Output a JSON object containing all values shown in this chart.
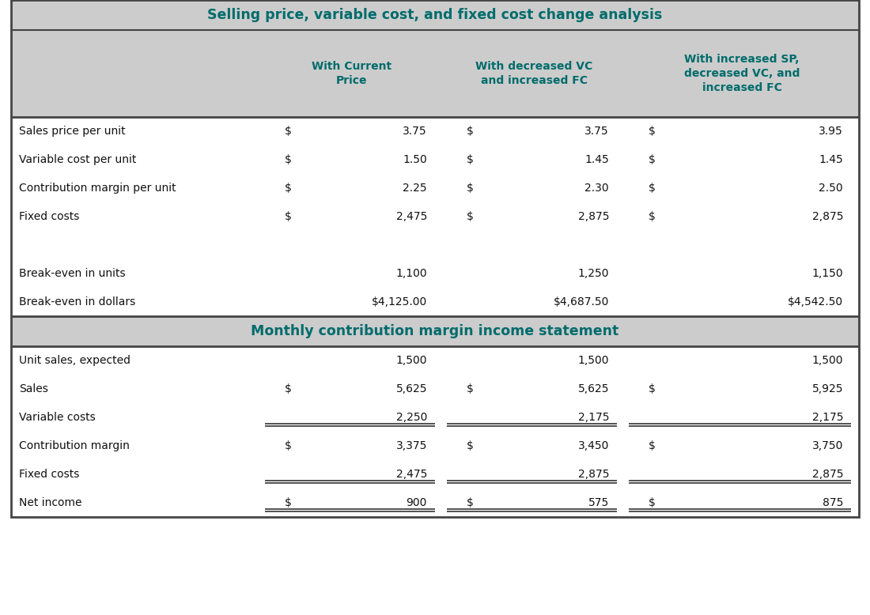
{
  "title1": "Selling price, variable cost, and fixed cost change analysis",
  "title2": "Monthly contribution margin income statement",
  "header_text_color": "#006b6b",
  "col_headers": [
    "With Current\nPrice",
    "With decreased VC\nand increased FC",
    "With increased SP,\ndecreased VC, and\nincreased FC"
  ],
  "section1_rows": [
    {
      "label": "Sales price per unit",
      "dollar": [
        true,
        true,
        true
      ],
      "values": [
        "3.75",
        "3.75",
        "3.95"
      ]
    },
    {
      "label": "Variable cost per unit",
      "dollar": [
        true,
        true,
        true
      ],
      "values": [
        "1.50",
        "1.45",
        "1.45"
      ]
    },
    {
      "label": "Contribution margin per unit",
      "dollar": [
        true,
        true,
        true
      ],
      "values": [
        "2.25",
        "2.30",
        "2.50"
      ]
    },
    {
      "label": "Fixed costs",
      "dollar": [
        true,
        true,
        true
      ],
      "values": [
        "2,475",
        "2,875",
        "2,875"
      ]
    }
  ],
  "section1_gap_rows": [
    {
      "label": "Break-even in units",
      "dollar": [
        false,
        false,
        false
      ],
      "values": [
        "1,100",
        "1,250",
        "1,150"
      ]
    },
    {
      "label": "Break-even in dollars",
      "dollar": [
        false,
        false,
        false
      ],
      "values": [
        "$4,125.00",
        "$4,687.50",
        "$4,542.50"
      ]
    }
  ],
  "section2_rows": [
    {
      "label": "Unit sales, expected",
      "dollar": [
        false,
        false,
        false
      ],
      "values": [
        "1,500",
        "1,500",
        "1,500"
      ],
      "underline": false
    },
    {
      "label": "Sales",
      "dollar": [
        true,
        true,
        true
      ],
      "values": [
        "5,625",
        "5,625",
        "5,925"
      ],
      "underline": false
    },
    {
      "label": "Variable costs",
      "dollar": [
        false,
        false,
        false
      ],
      "values": [
        "2,250",
        "2,175",
        "2,175"
      ],
      "underline": true
    },
    {
      "label": "Contribution margin",
      "dollar": [
        true,
        true,
        true
      ],
      "values": [
        "3,375",
        "3,450",
        "3,750"
      ],
      "underline": false
    },
    {
      "label": "Fixed costs",
      "dollar": [
        false,
        false,
        false
      ],
      "values": [
        "2,475",
        "2,875",
        "2,875"
      ],
      "underline": true
    },
    {
      "label": "Net income",
      "dollar": [
        true,
        true,
        true
      ],
      "values": [
        "900",
        "575",
        "875"
      ],
      "underline": true
    }
  ],
  "bg_white": "#ffffff",
  "bg_gray": "#cccccc",
  "text_dark": "#111111",
  "border_color": "#444444",
  "font_size_title": 12.5,
  "font_size_header": 10,
  "font_size_body": 10
}
